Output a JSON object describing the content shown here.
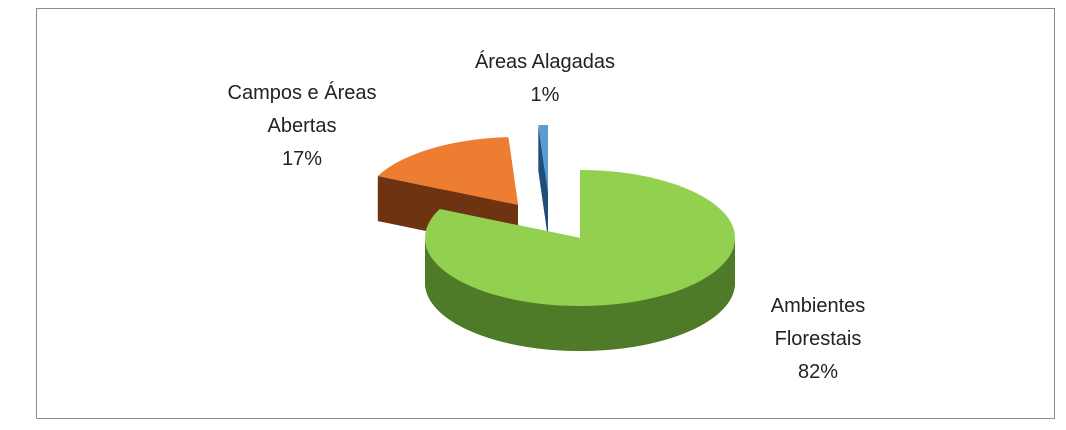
{
  "chart_data": {
    "type": "pie3d",
    "categories": [
      "Ambientes Florestais",
      "Campos e Áreas Abertas",
      "Áreas Alagadas"
    ],
    "values": [
      82,
      17,
      1
    ],
    "value_labels": [
      "82%",
      "17%",
      "1%"
    ],
    "colors": [
      "#92d050",
      "#ed7d31",
      "#5b9bd5"
    ],
    "side_colors": [
      "#4f7a28",
      "#6e3412",
      "#1f4e79"
    ]
  }
}
